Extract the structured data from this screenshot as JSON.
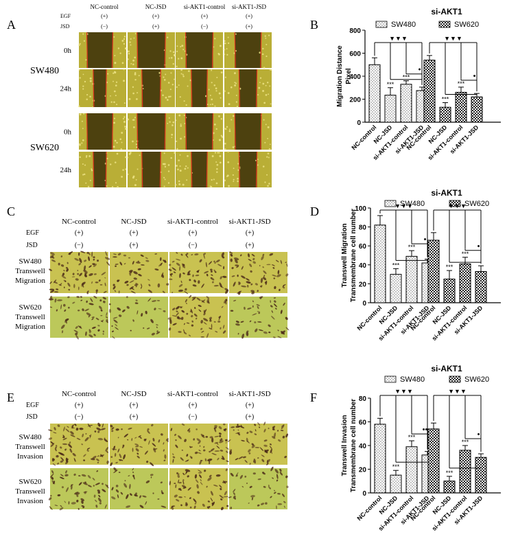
{
  "panels": [
    {
      "letter": "A",
      "col_headers": [
        "NC-control",
        "NC-JSD",
        "si-AKT1-control",
        "si-AKT1-JSD"
      ],
      "condition_rows": [
        {
          "label": "EGF",
          "values": [
            "(+)",
            "(+)",
            "(+)",
            "(+)"
          ]
        },
        {
          "label": "JSD",
          "values": [
            "(−)",
            "(+)",
            "(−)",
            "(+)"
          ]
        }
      ],
      "groups": [
        {
          "label": "SW480",
          "rows": [
            "0h",
            "24h"
          ]
        },
        {
          "label": "SW620",
          "rows": [
            "0h",
            "24h"
          ]
        }
      ]
    },
    {
      "letter": "C",
      "col_headers": [
        "NC-control",
        "NC-JSD",
        "si-AKT1-control",
        "si-AKT1-JSD"
      ],
      "condition_rows": [
        {
          "label": "EGF",
          "values": [
            "(+)",
            "(+)",
            "(+)",
            "(+)"
          ]
        },
        {
          "label": "JSD",
          "values": [
            "(−)",
            "(+)",
            "(−)",
            "(+)"
          ]
        }
      ],
      "groups": [
        {
          "label": [
            "SW480",
            "Transwell",
            "Migration"
          ]
        },
        {
          "label": [
            "SW620",
            "Transwell",
            "Migration"
          ]
        }
      ]
    },
    {
      "letter": "E",
      "col_headers": [
        "NC-control",
        "NC-JSD",
        "si-AKT1-control",
        "si-AKT1-JSD"
      ],
      "condition_rows": [
        {
          "label": "EGF",
          "values": [
            "(+)",
            "(+)",
            "(+)",
            "(+)"
          ]
        },
        {
          "label": "JSD",
          "values": [
            "(−)",
            "(+)",
            "(−)",
            "(+)"
          ]
        }
      ],
      "groups": [
        {
          "label": [
            "SW480",
            "Transwell",
            "Invasion"
          ]
        },
        {
          "label": [
            "SW620",
            "Transwell",
            "Invasion"
          ]
        }
      ]
    }
  ],
  "colors": {
    "scratch_yellow": "#b9ae36",
    "scratch_dark": "#3a2e08",
    "scratch_line": "#e0341c",
    "migration_bg": "#c9c251",
    "migration_green": "#bcc85a",
    "cell_dark": "#4b2a18",
    "bar_stroke": "#000000"
  },
  "chart_data": [
    {
      "letter": "B",
      "type": "bar",
      "title": "si-AKT1",
      "ylabel": [
        "Migration Distance",
        "Pixel"
      ],
      "ylim": [
        0,
        800
      ],
      "yticks": [
        0,
        200,
        400,
        600,
        800
      ],
      "categories": [
        "NC-control",
        "NC-JSD",
        "si-AKT1-control",
        "si-AKT1-JSD"
      ],
      "series": [
        {
          "name": "SW480",
          "pattern": "dots",
          "values": [
            500,
            235,
            330,
            275
          ],
          "errors": [
            60,
            65,
            30,
            30
          ]
        },
        {
          "name": "SW620",
          "pattern": "checker",
          "values": [
            540,
            130,
            260,
            220
          ],
          "errors": [
            40,
            40,
            45,
            30
          ]
        }
      ],
      "annotations": [
        {
          "series": 0,
          "bar": 1,
          "text": "***"
        },
        {
          "series": 0,
          "bar": 2,
          "text": "***"
        },
        {
          "series": 1,
          "bar": 1,
          "text": "***"
        },
        {
          "series": 1,
          "bar": 2,
          "text": "***"
        }
      ],
      "brackets": [
        {
          "series": 0,
          "from": 0,
          "to": [
            1,
            2,
            3
          ],
          "text": "▼▼▼",
          "level": 0
        },
        {
          "series": 0,
          "from": 2,
          "to": [
            3
          ],
          "text": "•",
          "level": 1
        },
        {
          "series": 1,
          "from": 0,
          "to": [
            1,
            2,
            3
          ],
          "text": "▼▼▼",
          "level": 0
        },
        {
          "series": 1,
          "from": 2,
          "to": [
            3
          ],
          "text": "•",
          "level": 1
        }
      ],
      "legend": "top"
    },
    {
      "letter": "D",
      "type": "bar",
      "title": "si-AKT1",
      "ylabel": [
        "Transwell Migration",
        "Transmembrane cell number"
      ],
      "ylim": [
        0,
        100
      ],
      "yticks": [
        0,
        20,
        40,
        60,
        80,
        100
      ],
      "categories": [
        "NC-control",
        "NC-JSD",
        "si-AKT1-control",
        "si-AKT1-JSD"
      ],
      "series": [
        {
          "name": "SW480",
          "pattern": "dots",
          "values": [
            82,
            30,
            49,
            42
          ],
          "errors": [
            10,
            6,
            6,
            4
          ]
        },
        {
          "name": "SW620",
          "pattern": "checker",
          "values": [
            66,
            25,
            41,
            33
          ],
          "errors": [
            8,
            9,
            7,
            6
          ]
        }
      ],
      "annotations": [
        {
          "series": 0,
          "bar": 1,
          "text": "***"
        },
        {
          "series": 0,
          "bar": 2,
          "text": "***"
        },
        {
          "series": 1,
          "bar": 1,
          "text": "***"
        },
        {
          "series": 1,
          "bar": 2,
          "text": "***"
        }
      ],
      "brackets": [
        {
          "series": 0,
          "from": 0,
          "to": [
            1,
            2,
            3
          ],
          "text": "▼▼▼",
          "level": 0
        },
        {
          "series": 0,
          "from": 2,
          "to": [
            3
          ],
          "text": "•",
          "level": 1
        },
        {
          "series": 1,
          "from": 0,
          "to": [
            1,
            2,
            3
          ],
          "text": "▼▼▼",
          "level": 0
        },
        {
          "series": 1,
          "from": 2,
          "to": [
            3
          ],
          "text": "•",
          "level": 1
        }
      ],
      "legend": "top"
    },
    {
      "letter": "F",
      "type": "bar",
      "title": "si-AKT1",
      "ylabel": [
        "Transwell Invasion",
        "Transmembrane cell number"
      ],
      "ylim": [
        0,
        80
      ],
      "yticks": [
        0,
        20,
        40,
        60,
        80
      ],
      "categories": [
        "NC-control",
        "NC-JSD",
        "si-AKT1-control",
        "si-AKT1-JSD"
      ],
      "series": [
        {
          "name": "SW480",
          "pattern": "dots",
          "values": [
            58,
            15,
            39,
            32
          ],
          "errors": [
            5,
            4,
            5,
            3
          ]
        },
        {
          "name": "SW620",
          "pattern": "checker",
          "values": [
            54,
            10,
            36,
            30
          ],
          "errors": [
            5,
            4,
            4,
            3
          ]
        }
      ],
      "annotations": [
        {
          "series": 0,
          "bar": 1,
          "text": "***"
        },
        {
          "series": 0,
          "bar": 2,
          "text": "***"
        },
        {
          "series": 1,
          "bar": 1,
          "text": "***"
        },
        {
          "series": 1,
          "bar": 2,
          "text": "***"
        }
      ],
      "brackets": [
        {
          "series": 0,
          "from": 0,
          "to": [
            1,
            2,
            3
          ],
          "text": "▼▼▼",
          "level": 0
        },
        {
          "series": 0,
          "from": 2,
          "to": [
            3
          ],
          "text": "••",
          "level": 1
        },
        {
          "series": 1,
          "from": 0,
          "to": [
            1,
            2,
            3
          ],
          "text": "▼▼▼",
          "level": 0
        },
        {
          "series": 1,
          "from": 2,
          "to": [
            3
          ],
          "text": "•",
          "level": 1
        }
      ],
      "legend": "top"
    }
  ]
}
